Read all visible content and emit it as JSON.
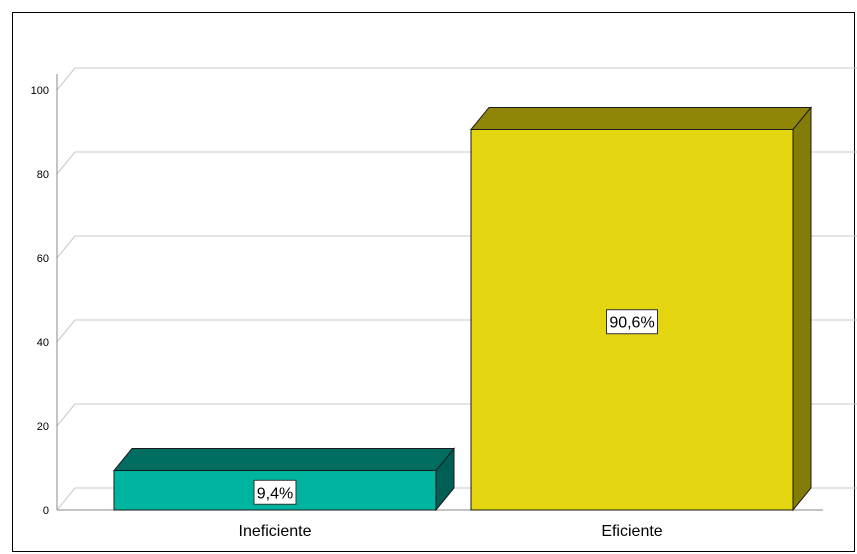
{
  "chart_data": {
    "type": "bar",
    "three_d": true,
    "categories": [
      "Ineficiente",
      "Eficiente"
    ],
    "values": [
      9.4,
      90.6
    ],
    "data_labels": [
      "9,4%",
      "90,6%"
    ],
    "yticks": [
      0,
      20,
      40,
      60,
      80,
      100
    ],
    "ylim": [
      0,
      100
    ],
    "grid": true,
    "title": "",
    "xlabel": "",
    "ylabel": "",
    "colors": {
      "front": [
        "#00B5A0",
        "#E3D50F"
      ],
      "top": [
        "#006D60",
        "#8F8609"
      ],
      "side": [
        "#005F54",
        "#847C08"
      ],
      "grid": "#C8C8C8",
      "axis": "#888888",
      "outline": "#1a1a1a"
    }
  }
}
